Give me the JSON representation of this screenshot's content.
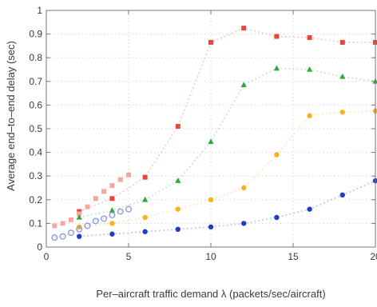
{
  "chart_data": {
    "type": "scatter",
    "title": "",
    "xlabel": "Per–aircraft traffic demand λ (packets/sec/aircraft)",
    "ylabel": "Average end–to–end delay (sec)",
    "xlim": [
      0,
      20
    ],
    "ylim": [
      0,
      1
    ],
    "x_ticks": [
      "0",
      "5",
      "10",
      "15",
      "20"
    ],
    "y_ticks": [
      "0",
      "0.1",
      "0.2",
      "0.3",
      "0.4",
      "0.5",
      "0.6",
      "0.7",
      "0.8",
      "0.9",
      "1"
    ],
    "grid": true,
    "legend": "none",
    "series": [
      {
        "color": "#e8463b",
        "marker": "square",
        "points": [
          [
            2,
            0.15
          ],
          [
            4,
            0.205
          ],
          [
            6,
            0.295
          ],
          [
            8,
            0.51
          ],
          [
            10,
            0.865
          ],
          [
            12,
            0.925
          ],
          [
            14,
            0.89
          ],
          [
            16,
            0.885
          ],
          [
            18,
            0.865
          ],
          [
            20,
            0.865
          ]
        ]
      },
      {
        "color": "#f6a7a0",
        "marker": "square",
        "points": [
          [
            0.5,
            0.09
          ],
          [
            1,
            0.1
          ],
          [
            1.5,
            0.115
          ],
          [
            2,
            0.14
          ],
          [
            2.5,
            0.17
          ],
          [
            3,
            0.205
          ],
          [
            3.5,
            0.235
          ],
          [
            4,
            0.26
          ],
          [
            4.5,
            0.285
          ],
          [
            5,
            0.305
          ]
        ]
      },
      {
        "color": "#2eaa3a",
        "marker": "triangle",
        "points": [
          [
            2,
            0.125
          ],
          [
            4,
            0.155
          ],
          [
            6,
            0.2
          ],
          [
            8,
            0.28
          ],
          [
            10,
            0.445
          ],
          [
            12,
            0.685
          ],
          [
            14,
            0.755
          ],
          [
            16,
            0.75
          ],
          [
            18,
            0.72
          ],
          [
            20,
            0.7
          ]
        ]
      },
      {
        "color": "#f7b21e",
        "marker": "circle",
        "points": [
          [
            2,
            0.085
          ],
          [
            4,
            0.1
          ],
          [
            6,
            0.125
          ],
          [
            8,
            0.16
          ],
          [
            10,
            0.2
          ],
          [
            12,
            0.25
          ],
          [
            14,
            0.39
          ],
          [
            16,
            0.555
          ],
          [
            18,
            0.57
          ],
          [
            20,
            0.575
          ]
        ]
      },
      {
        "color": "#1f3fbf",
        "marker": "circle",
        "points": [
          [
            2,
            0.045
          ],
          [
            4,
            0.055
          ],
          [
            6,
            0.065
          ],
          [
            8,
            0.075
          ],
          [
            10,
            0.085
          ],
          [
            12,
            0.1
          ],
          [
            14,
            0.125
          ],
          [
            16,
            0.16
          ],
          [
            18,
            0.22
          ],
          [
            20,
            0.28
          ]
        ]
      },
      {
        "color": "#8d9bde",
        "marker": "open-circle",
        "points": [
          [
            0.5,
            0.04
          ],
          [
            1,
            0.045
          ],
          [
            1.5,
            0.06
          ],
          [
            2,
            0.075
          ],
          [
            2.5,
            0.09
          ],
          [
            3,
            0.11
          ],
          [
            3.5,
            0.12
          ],
          [
            4,
            0.135
          ],
          [
            4.5,
            0.15
          ],
          [
            5,
            0.16
          ]
        ]
      }
    ]
  }
}
